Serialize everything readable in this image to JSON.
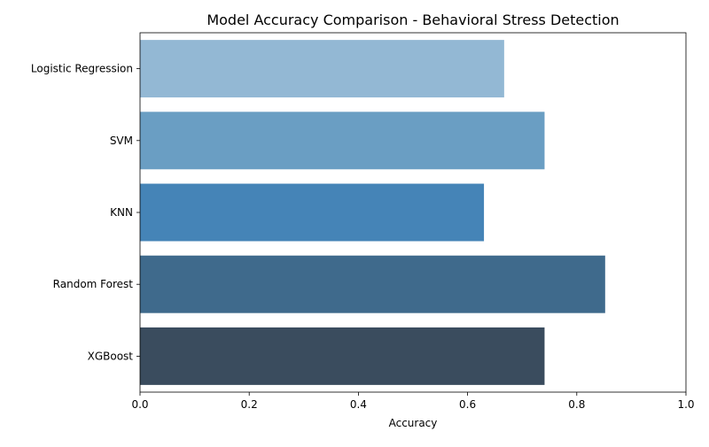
{
  "chart_data": {
    "type": "bar",
    "orientation": "horizontal",
    "title": "Model Accuracy Comparison - Behavioral Stress Detection",
    "xlabel": "Accuracy",
    "ylabel": "",
    "categories": [
      "Logistic Regression",
      "SVM",
      "KNN",
      "Random Forest",
      "XGBoost"
    ],
    "values": [
      0.667,
      0.741,
      0.63,
      0.852,
      0.741
    ],
    "colors": [
      "#93b8d4",
      "#6a9ec3",
      "#4584b7",
      "#3f6a8c",
      "#3a4c5e"
    ],
    "xlim": [
      0,
      1.0
    ],
    "xticks": [
      "0.0",
      "0.2",
      "0.4",
      "0.6",
      "0.8",
      "1.0"
    ],
    "grid": false,
    "legend": "none"
  }
}
